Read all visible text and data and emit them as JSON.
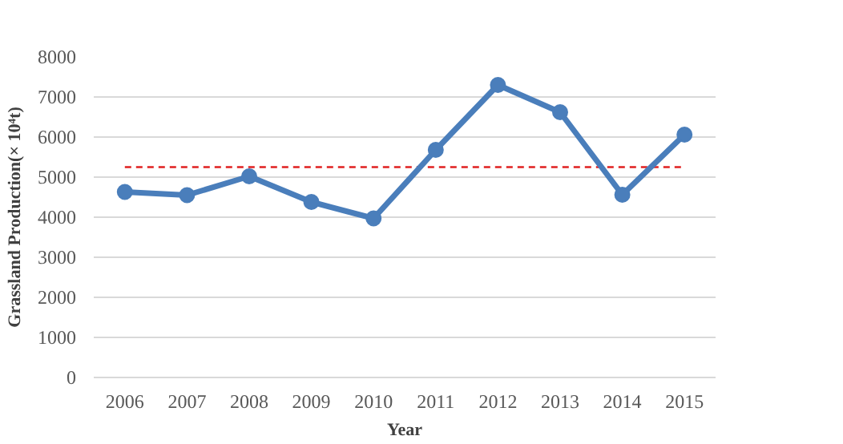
{
  "chart_data": {
    "type": "line",
    "xlabel": "Year",
    "ylabel": "Grassland Production(× 10⁴t)",
    "categories": [
      "2006",
      "2007",
      "2008",
      "2009",
      "2010",
      "2011",
      "2012",
      "2013",
      "2014",
      "2015"
    ],
    "series": [
      {
        "color": "#4a7ebb",
        "values": [
          4630,
          4550,
          5020,
          4380,
          3970,
          5680,
          7300,
          6620,
          4560,
          6060
        ]
      }
    ],
    "ylim": [
      0,
      8000
    ],
    "yticks": [
      0,
      1000,
      2000,
      3000,
      4000,
      5000,
      6000,
      7000,
      8000
    ],
    "grid": "y",
    "marker": "circle",
    "line_style": "solid",
    "ref_lines": [
      {
        "axis": "y",
        "value": 5250,
        "color": "#e02020",
        "line_style": "dashed"
      }
    ]
  }
}
